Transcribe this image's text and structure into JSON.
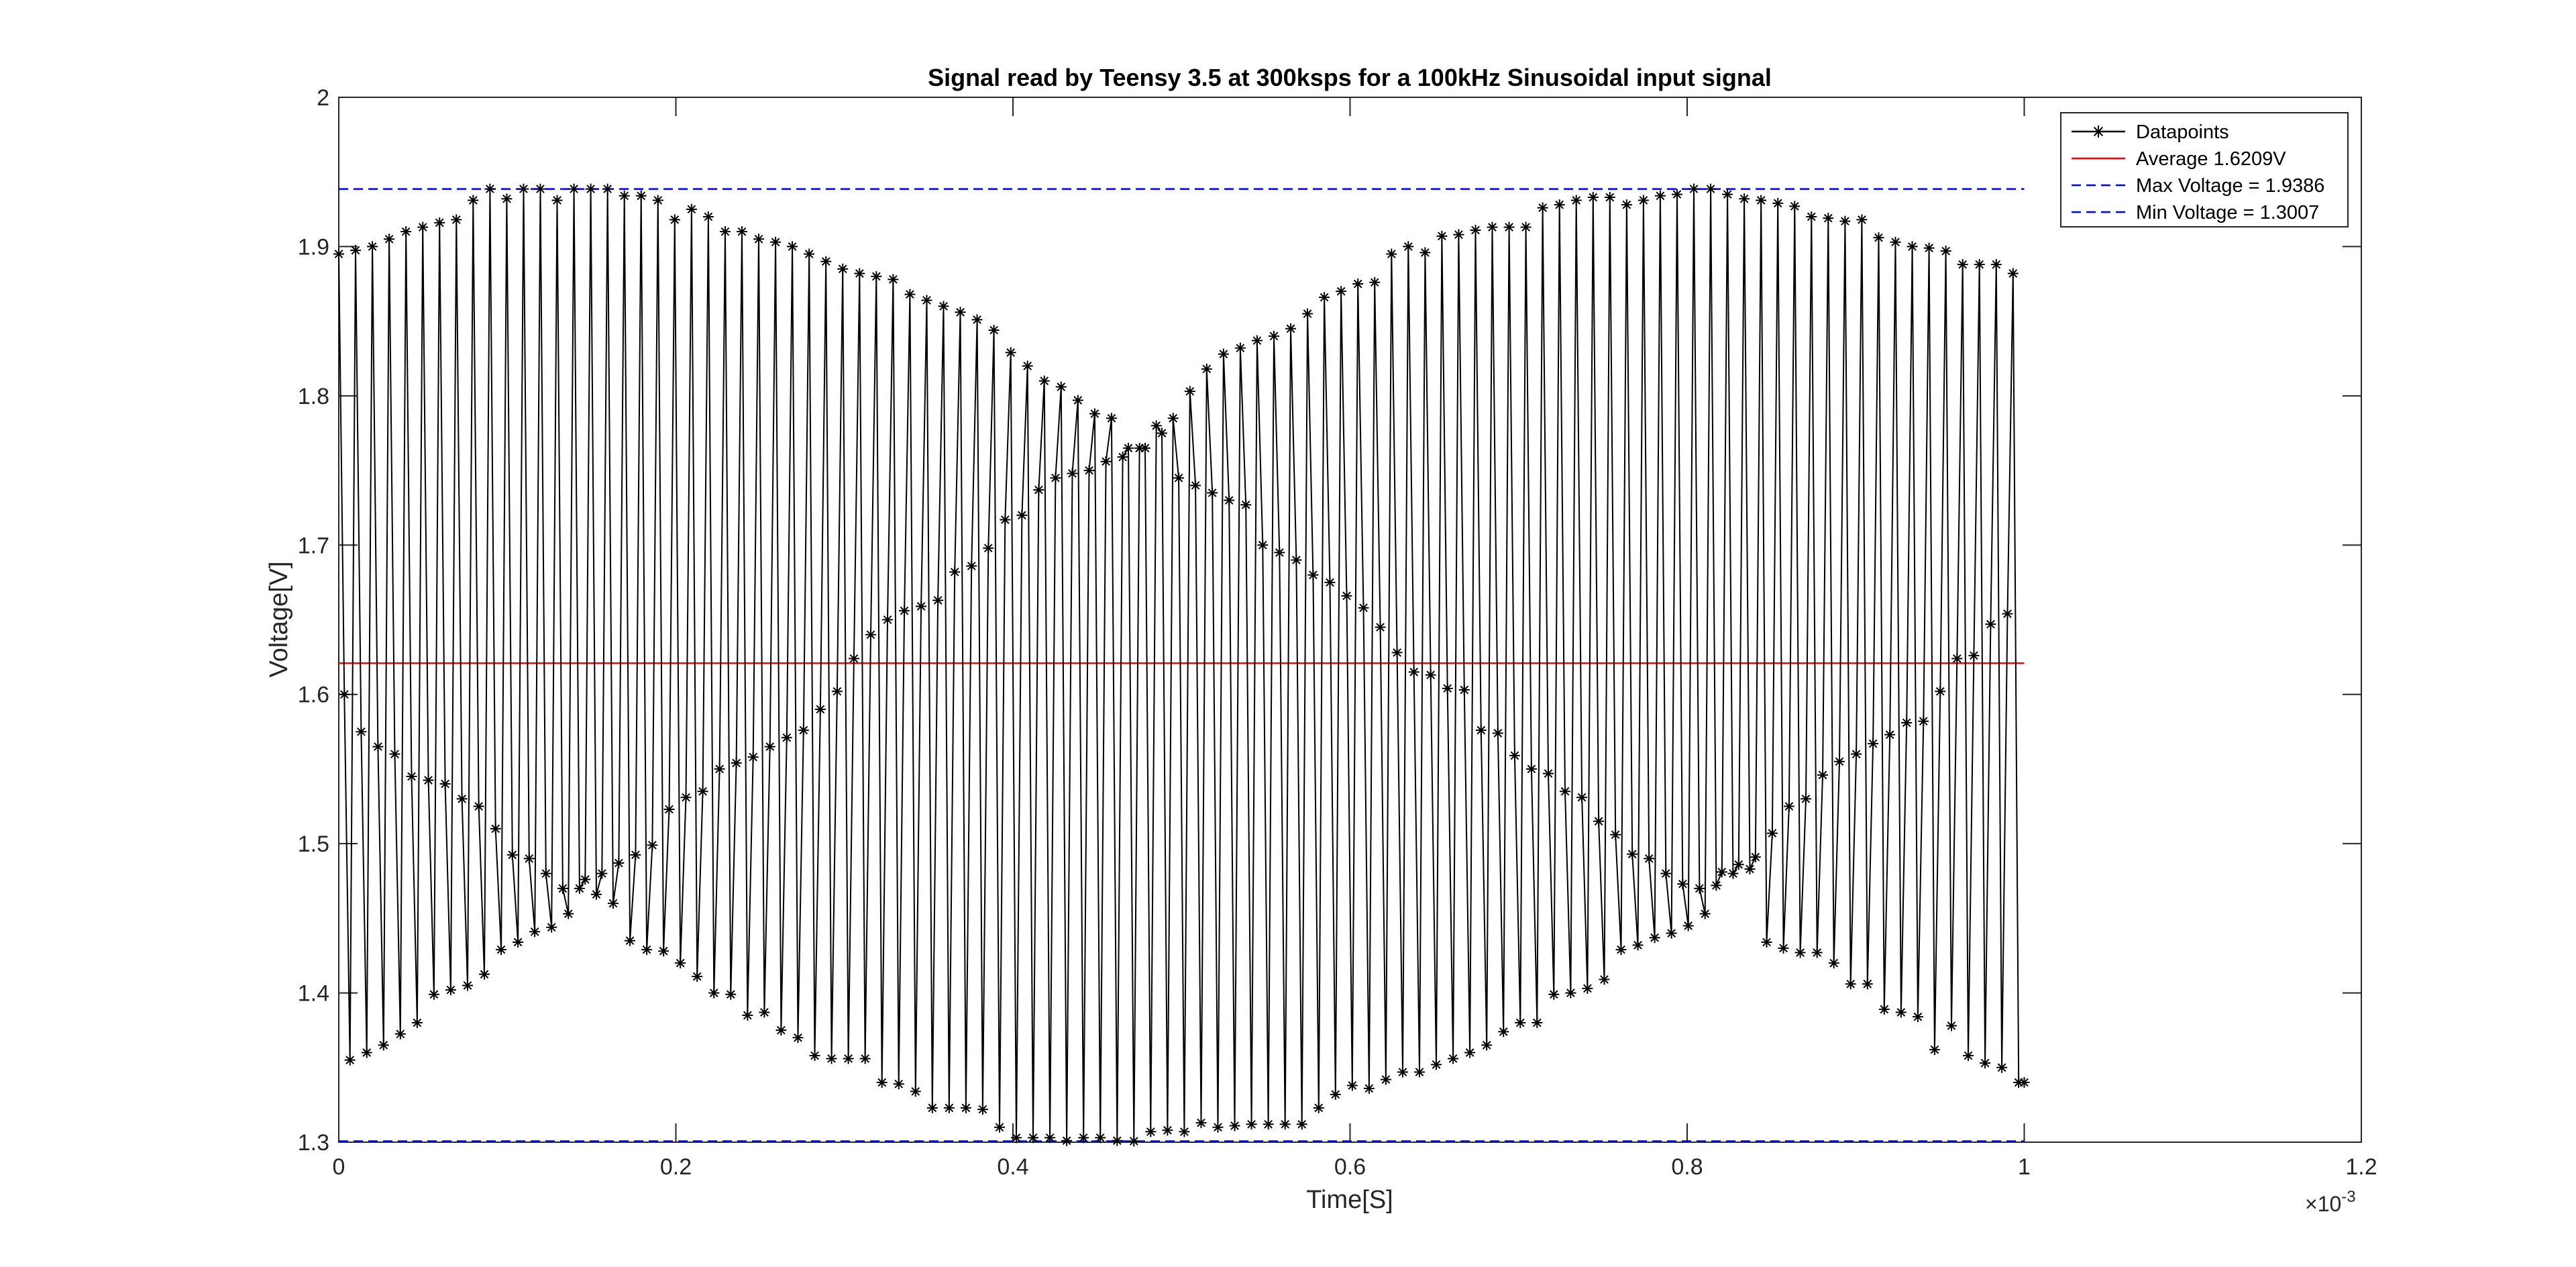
{
  "chart_data": {
    "type": "line",
    "title": "Signal read by Teensy 3.5 at 300ksps for a 100kHz Sinusoidal input signal",
    "xlabel": "Time[S]",
    "ylabel": "Voltage[V]",
    "xlim": [
      0,
      0.0012
    ],
    "ylim": [
      1.3,
      2.0
    ],
    "x_exponent_label": "×10",
    "x_exponent_power": "-3",
    "x_ticks": [
      0,
      0.0002,
      0.0004,
      0.0006,
      0.0008,
      0.001,
      0.0012
    ],
    "x_tick_labels": [
      "0",
      "0.2",
      "0.4",
      "0.6",
      "0.8",
      "1",
      "1.2"
    ],
    "y_ticks": [
      1.3,
      1.4,
      1.5,
      1.6,
      1.7,
      1.8,
      1.9,
      2.0
    ],
    "y_tick_labels": [
      "1.3",
      "1.4",
      "1.5",
      "1.6",
      "1.7",
      "1.8",
      "1.9",
      "2"
    ],
    "grid": false,
    "legend_position": "top-right",
    "series": [
      {
        "name": "Datapoints",
        "style": "solid-asterisk",
        "color": "#000000",
        "sample_period": 3.3333e-06,
        "x_start": 0,
        "x_end": 0.001,
        "values": [
          1.895,
          1.6,
          1.355,
          1.8975,
          1.575,
          1.36,
          1.9,
          1.565,
          1.365,
          1.905,
          1.56,
          1.3725,
          1.91,
          1.545,
          1.38,
          1.913,
          1.5425,
          1.399,
          1.916,
          1.54,
          1.402,
          1.918,
          1.53,
          1.405,
          1.931,
          1.525,
          1.4125,
          1.9386,
          1.51,
          1.429,
          1.932,
          1.4925,
          1.434,
          1.9386,
          1.49,
          1.441,
          1.9386,
          1.48,
          1.444,
          1.931,
          1.47,
          1.453,
          1.9386,
          1.47,
          1.476,
          1.9386,
          1.466,
          1.48,
          1.9386,
          1.46,
          1.487,
          1.934,
          1.435,
          1.4925,
          1.934,
          1.429,
          1.499,
          1.931,
          1.428,
          1.523,
          1.918,
          1.42,
          1.531,
          1.925,
          1.411,
          1.535,
          1.92,
          1.4,
          1.55,
          1.91,
          1.399,
          1.554,
          1.91,
          1.385,
          1.558,
          1.905,
          1.387,
          1.565,
          1.903,
          1.375,
          1.571,
          1.9,
          1.37,
          1.576,
          1.895,
          1.358,
          1.59,
          1.89,
          1.356,
          1.602,
          1.885,
          1.356,
          1.624,
          1.882,
          1.356,
          1.64,
          1.88,
          1.34,
          1.65,
          1.878,
          1.339,
          1.656,
          1.868,
          1.334,
          1.659,
          1.864,
          1.323,
          1.663,
          1.86,
          1.323,
          1.682,
          1.856,
          1.323,
          1.686,
          1.851,
          1.322,
          1.698,
          1.844,
          1.31,
          1.717,
          1.829,
          1.303,
          1.72,
          1.82,
          1.303,
          1.737,
          1.81,
          1.303,
          1.745,
          1.806,
          1.301,
          1.748,
          1.797,
          1.303,
          1.75,
          1.788,
          1.303,
          1.756,
          1.785,
          1.301,
          1.759,
          1.765,
          1.3007,
          1.765,
          1.765,
          1.307,
          1.78,
          1.775,
          1.308,
          1.785,
          1.745,
          1.307,
          1.803,
          1.74,
          1.313,
          1.818,
          1.735,
          1.31,
          1.828,
          1.73,
          1.311,
          1.832,
          1.727,
          1.312,
          1.837,
          1.7,
          1.312,
          1.84,
          1.695,
          1.312,
          1.845,
          1.69,
          1.312,
          1.855,
          1.68,
          1.323,
          1.866,
          1.675,
          1.332,
          1.87,
          1.666,
          1.338,
          1.875,
          1.658,
          1.336,
          1.876,
          1.645,
          1.342,
          1.895,
          1.628,
          1.347,
          1.9,
          1.615,
          1.347,
          1.896,
          1.613,
          1.352,
          1.907,
          1.604,
          1.356,
          1.908,
          1.603,
          1.36,
          1.911,
          1.576,
          1.365,
          1.913,
          1.574,
          1.374,
          1.913,
          1.559,
          1.38,
          1.913,
          1.55,
          1.38,
          1.926,
          1.547,
          1.399,
          1.928,
          1.535,
          1.4,
          1.931,
          1.531,
          1.403,
          1.933,
          1.515,
          1.409,
          1.933,
          1.506,
          1.429,
          1.928,
          1.493,
          1.432,
          1.931,
          1.49,
          1.437,
          1.934,
          1.48,
          1.44,
          1.935,
          1.473,
          1.445,
          1.9386,
          1.47,
          1.453,
          1.9386,
          1.472,
          1.481,
          1.935,
          1.48,
          1.486,
          1.932,
          1.483,
          1.491,
          1.931,
          1.434,
          1.507,
          1.929,
          1.43,
          1.525,
          1.927,
          1.427,
          1.53,
          1.92,
          1.427,
          1.546,
          1.919,
          1.42,
          1.555,
          1.917,
          1.406,
          1.56,
          1.918,
          1.406,
          1.567,
          1.906,
          1.389,
          1.573,
          1.903,
          1.387,
          1.581,
          1.9,
          1.384,
          1.582,
          1.899,
          1.362,
          1.602,
          1.897,
          1.378,
          1.624,
          1.888,
          1.358,
          1.626,
          1.888,
          1.353,
          1.647,
          1.888,
          1.35,
          1.654,
          1.882,
          1.34,
          1.34
        ]
      },
      {
        "name": "Average 1.6209V",
        "style": "solid",
        "color": "#ff0000",
        "x": [
          0,
          0.001
        ],
        "values": [
          1.6209,
          1.6209
        ]
      },
      {
        "name": "Max Voltage = 1.9386",
        "style": "dashed",
        "color": "#0000ff",
        "x": [
          0,
          0.001
        ],
        "values": [
          1.9386,
          1.9386
        ]
      },
      {
        "name": "Min Voltage = 1.3007",
        "style": "dashed",
        "color": "#0000ff",
        "x": [
          0,
          0.001
        ],
        "values": [
          1.3007,
          1.3007
        ]
      }
    ]
  }
}
